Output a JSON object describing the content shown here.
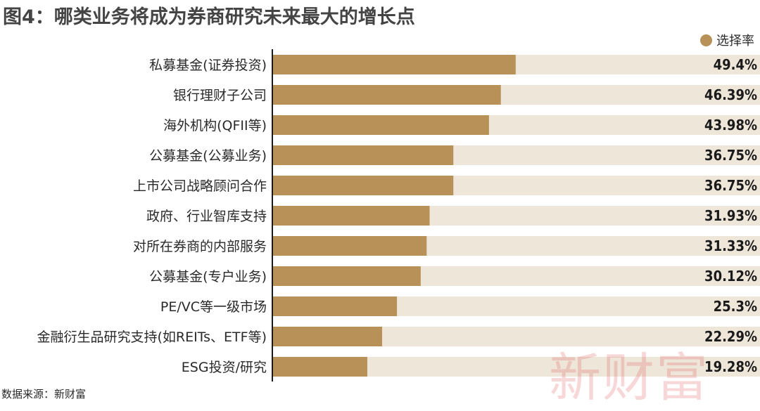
{
  "title": "图4：哪类业务将成为券商研究未来最大的增长点",
  "source": "数据来源：新财富",
  "watermark": "新财富",
  "colors": {
    "bar": "#b79158",
    "track": "#efe6da",
    "axis": "#1a1a1a"
  },
  "chart_data": {
    "type": "bar",
    "orientation": "horizontal",
    "title": "图4：哪类业务将成为券商研究未来最大的增长点",
    "xlim": [
      0,
      100
    ],
    "legend": {
      "position": "top-right",
      "entries": [
        "选择率"
      ]
    },
    "grid": false,
    "series": [
      {
        "name": "选择率",
        "values": [
          49.4,
          46.39,
          43.98,
          36.75,
          36.75,
          31.93,
          31.33,
          30.12,
          25.3,
          22.29,
          19.28
        ]
      }
    ],
    "categories": [
      "私募基金(证券投资)",
      "银行理财子公司",
      "海外机构(QFII等)",
      "公募基金(公募业务)",
      "上市公司战略顾问合作",
      "政府、行业智库支持",
      "对所在券商的内部服务",
      "公募基金(专户业务)",
      "PE/VC等一级市场",
      "金融衍生品研究支持(如REITs、ETF等)",
      "ESG投资/研究"
    ],
    "value_labels": [
      "49.4%",
      "46.39%",
      "43.98%",
      "36.75%",
      "36.75%",
      "31.93%",
      "31.33%",
      "30.12%",
      "25.3%",
      "22.29%",
      "19.28%"
    ]
  }
}
